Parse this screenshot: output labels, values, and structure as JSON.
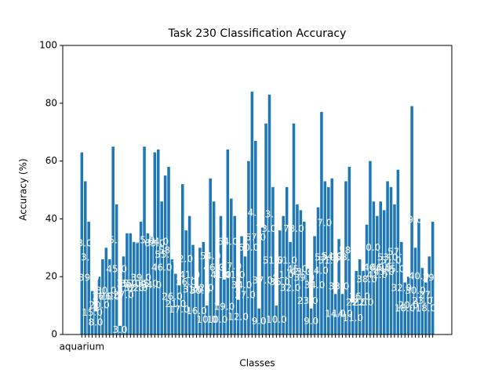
{
  "chart_data": {
    "type": "bar",
    "title": "Task 230 Classification Accuracy",
    "x_label": "Classes",
    "y_label": "Accuracy (%)",
    "categories": [
      "aquarium",
      null,
      null,
      null,
      null,
      null,
      null,
      null,
      null,
      null,
      null,
      null,
      null,
      null,
      null,
      null,
      null,
      null,
      null,
      null,
      null,
      null,
      null,
      null,
      null,
      null,
      null,
      null,
      null,
      null,
      null,
      null,
      null,
      null,
      null,
      null,
      null,
      null,
      null,
      null,
      null,
      null,
      null,
      null,
      null,
      null,
      null,
      null,
      null,
      null,
      null,
      null,
      null,
      null,
      null,
      null,
      null,
      null,
      null,
      null,
      null,
      null,
      null,
      null,
      null,
      null,
      null,
      null,
      null,
      null,
      null,
      null,
      null,
      null,
      null,
      null,
      null,
      null,
      null,
      null,
      null,
      null,
      null,
      null,
      null,
      null,
      null,
      null,
      null,
      null,
      null,
      null,
      null,
      null,
      null,
      null,
      null,
      null,
      null,
      null,
      null,
      null
    ],
    "values": [
      63,
      53,
      39,
      15,
      8,
      20,
      26,
      30,
      26,
      65,
      45,
      3,
      27,
      35,
      35,
      32,
      32,
      39,
      65,
      35,
      34,
      63,
      64,
      46,
      55,
      58,
      26,
      21,
      17,
      52,
      36,
      41,
      31,
      16,
      30,
      32,
      10,
      54,
      46,
      10,
      41,
      19,
      64,
      47,
      41,
      12,
      34,
      27,
      60,
      84,
      67,
      9,
      37,
      73,
      83,
      51,
      10,
      36,
      41,
      51,
      32,
      73,
      45,
      43,
      39,
      23,
      9,
      34,
      44,
      77,
      53,
      51,
      54,
      14,
      33,
      14,
      53,
      58,
      11,
      22,
      26,
      22,
      38,
      60,
      46,
      41,
      46,
      43,
      53,
      51,
      45,
      57,
      32,
      18,
      20,
      79,
      30,
      40,
      23,
      18,
      27,
      39
    ],
    "value_labels": [
      "63.0",
      "53.0",
      "39.0",
      "15.0",
      "8.0",
      "20.0",
      "26.0",
      "30.0",
      "26.0",
      "65.0",
      "45.0",
      "3.0",
      "27.0",
      "35.0",
      "35.0",
      "32.0",
      "32.0",
      "39.0",
      "65.0",
      "35.0",
      "34.0",
      "63.0",
      "64.0",
      "46.0",
      "55.0",
      "58.0",
      "26.0",
      "21.0",
      "17.0",
      "52.0",
      "36.0",
      "41.0",
      "31.0",
      "16.0",
      "30.0",
      "32.0",
      "10.0",
      "54.0",
      "46.0",
      "10.0",
      "41.0",
      "19.0",
      "64.0",
      "47.0",
      "41.0",
      "12.0",
      "34.0",
      "27.0",
      "60.0",
      "84.0",
      "67.0",
      "9.0",
      "37.0",
      "73.0",
      "83.0",
      "51.0",
      "10.0",
      "36.0",
      "41.0",
      "51.0",
      "32.0",
      "73.0",
      "45.0",
      "43.0",
      "39.0",
      "23.0",
      "9.0",
      "34.0",
      "44.0",
      "77.0",
      "53.0",
      "51.0",
      "54.0",
      "14.0",
      "33.0",
      "14.0",
      "53.0",
      "58.0",
      "11.0",
      "22.0",
      "26.0",
      "22.0",
      "38.0",
      "60.0",
      "46.0",
      "41.0",
      "46.0",
      "43.0",
      "53.0",
      "51.0",
      "45.0",
      "57.0",
      "32.0",
      "18.0",
      "20.0",
      "79.0",
      "30.0",
      "40.0",
      "23.0",
      "18.0",
      "27.0",
      "39.0"
    ],
    "color": "#1f77b4",
    "ylim": [
      0,
      100
    ],
    "yticks": [
      0,
      20,
      40,
      60,
      80,
      100
    ],
    "grid": false
  }
}
